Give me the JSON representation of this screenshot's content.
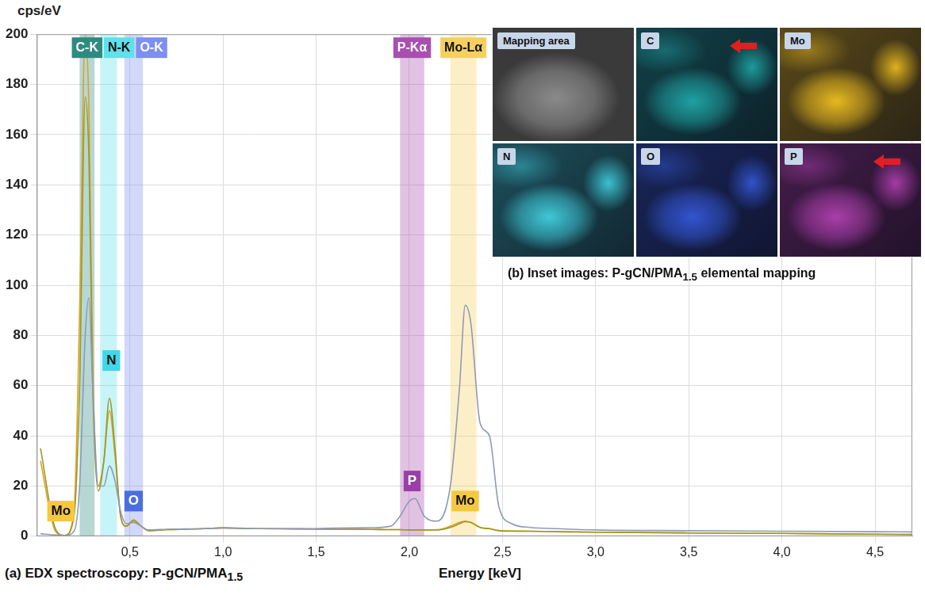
{
  "chart_data": {
    "type": "line",
    "title": "(a) EDX spectroscopy: P-gCN/PMA1.5",
    "x_label": "Energy [keV]",
    "y_label": "cps/eV",
    "x": [
      0.02,
      0.1,
      0.15,
      0.2,
      0.23,
      0.26,
      0.28,
      0.3,
      0.33,
      0.36,
      0.39,
      0.42,
      0.45,
      0.48,
      0.52,
      0.56,
      0.6,
      0.7,
      0.8,
      0.9,
      1.0,
      1.1,
      1.2,
      1.4,
      1.6,
      1.8,
      1.9,
      1.95,
      2.0,
      2.03,
      2.08,
      2.15,
      2.22,
      2.27,
      2.3,
      2.33,
      2.38,
      2.43,
      2.48,
      2.55,
      2.65,
      2.8,
      3.0,
      3.5,
      4.0,
      4.5,
      4.7
    ],
    "series": [
      {
        "color": "#8e9ab8",
        "values": [
          1,
          0.5,
          0.3,
          2,
          20,
          80,
          95,
          60,
          20,
          20,
          28,
          22,
          10,
          5,
          5.5,
          4,
          2.5,
          2.8,
          2.9,
          3.0,
          3.3,
          3.2,
          3.0,
          3.0,
          3.2,
          3.4,
          4,
          8,
          14,
          15,
          8,
          6,
          20,
          60,
          92,
          85,
          45,
          40,
          12,
          5,
          3.5,
          3,
          2.5,
          2.2,
          2,
          1.8,
          1.7
        ]
      },
      {
        "color": "#9a9a28",
        "values": [
          35,
          3,
          0.3,
          8,
          60,
          175,
          150,
          60,
          18,
          30,
          55,
          35,
          8,
          4,
          6.5,
          4,
          2.2,
          2.6,
          2.8,
          3.0,
          3.4,
          3.1,
          3.0,
          2.9,
          2.8,
          2.7,
          2.6,
          2.6,
          2.5,
          2.5,
          2.5,
          2.5,
          3.5,
          5,
          5.8,
          5.5,
          3.5,
          3,
          2.2,
          2,
          2,
          1.8,
          1.6,
          1.3,
          1.1,
          0.8,
          0.7
        ]
      },
      {
        "color": "#e0a020",
        "values": [
          30,
          2,
          0.3,
          10,
          90,
          200,
          170,
          70,
          20,
          30,
          50,
          32,
          8,
          4,
          6,
          4,
          2.2,
          2.6,
          2.8,
          3.0,
          3.3,
          3.1,
          3.0,
          2.9,
          2.8,
          2.7,
          2.6,
          2.6,
          2.5,
          2.5,
          2.5,
          2.6,
          4,
          5.5,
          6,
          5.5,
          3.5,
          3,
          2.3,
          2.1,
          2,
          1.8,
          1.6,
          1.3,
          1.1,
          0.8,
          0.7
        ]
      }
    ],
    "xlim": [
      0,
      4.7
    ],
    "xticks": [
      {
        "value": 0.5,
        "label": "0,5"
      },
      {
        "value": 1.0,
        "label": "1,0"
      },
      {
        "value": 1.5,
        "label": "1,5"
      },
      {
        "value": 2.0,
        "label": "2,0"
      },
      {
        "value": 2.5,
        "label": "2,5"
      },
      {
        "value": 3.0,
        "label": "3,0"
      },
      {
        "value": 3.5,
        "label": "3,5"
      },
      {
        "value": 4.0,
        "label": "4,0"
      },
      {
        "value": 4.5,
        "label": "4,5"
      }
    ],
    "ylim": [
      0,
      200
    ],
    "yticks": [
      0,
      20,
      40,
      60,
      80,
      100,
      120,
      140,
      160,
      180,
      200
    ],
    "grid": true,
    "bands": [
      {
        "label": "C-K",
        "from": 0.23,
        "to": 0.31,
        "color": "#2e8b80"
      },
      {
        "label": "N-K",
        "from": 0.34,
        "to": 0.43,
        "color": "#5fe0ea"
      },
      {
        "label": "O-K",
        "from": 0.47,
        "to": 0.57,
        "color": "#7d8ff0"
      },
      {
        "label": "P-Kα",
        "from": 1.95,
        "to": 2.08,
        "color": "#a84fb0"
      },
      {
        "label": "Mo-Lα",
        "from": 2.22,
        "to": 2.36,
        "color": "#f5d060"
      }
    ],
    "annotations": [
      {
        "text": "Mo",
        "x": 0.13,
        "y": 10,
        "color": "#f5c842"
      },
      {
        "text": "N",
        "x": 0.4,
        "y": 70,
        "color": "#3fd8e8"
      },
      {
        "text": "O",
        "x": 0.52,
        "y": 14,
        "color": "#4a6ee0"
      },
      {
        "text": "P",
        "x": 2.015,
        "y": 22,
        "color": "#9a3fa8"
      },
      {
        "text": "Mo",
        "x": 2.3,
        "y": 14,
        "color": "#f5c842"
      }
    ]
  },
  "inset_images": {
    "caption": "(b) Inset images: P-gCN/PMA1.5 elemental mapping",
    "panels": [
      {
        "label": "Mapping area",
        "color": "#9a9a9a"
      },
      {
        "label": "C",
        "color": "#1fa8a8",
        "arrow": true
      },
      {
        "label": "Mo",
        "color": "#f0c020"
      },
      {
        "label": "N",
        "color": "#40d0e0"
      },
      {
        "label": "O",
        "color": "#3458d8"
      },
      {
        "label": "P",
        "color": "#b040b0",
        "arrow": true
      }
    ]
  }
}
